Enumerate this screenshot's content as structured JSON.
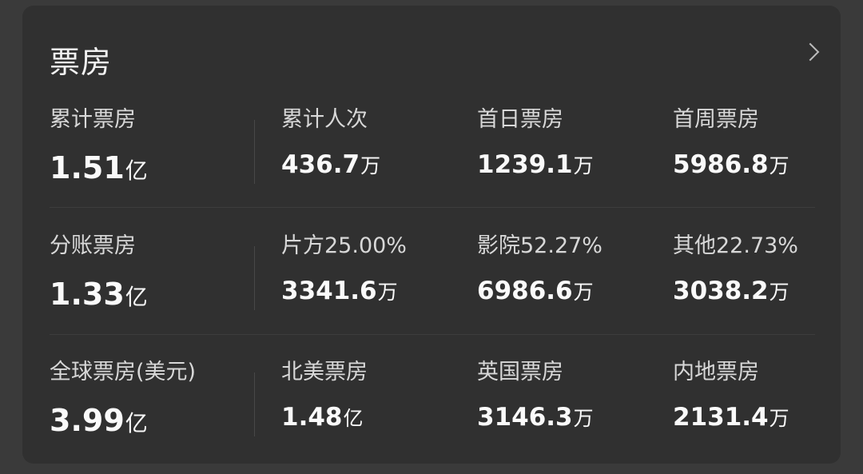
{
  "header": {
    "title": "票房",
    "more_icon": "chevron-right-icon"
  },
  "rows": [
    {
      "primary": {
        "label": "累计票房",
        "value": "1.51",
        "unit": "亿"
      },
      "items": [
        {
          "label": "累计人次",
          "value": "436.7",
          "unit": "万"
        },
        {
          "label": "首日票房",
          "value": "1239.1",
          "unit": "万"
        },
        {
          "label": "首周票房",
          "value": "5986.8",
          "unit": "万"
        }
      ]
    },
    {
      "primary": {
        "label": "分账票房",
        "value": "1.33",
        "unit": "亿"
      },
      "items": [
        {
          "label": "片方25.00%",
          "value": "3341.6",
          "unit": "万"
        },
        {
          "label": "影院52.27%",
          "value": "6986.6",
          "unit": "万"
        },
        {
          "label": "其他22.73%",
          "value": "3038.2",
          "unit": "万"
        }
      ]
    },
    {
      "primary": {
        "label": "全球票房(美元)",
        "value": "3.99",
        "unit": "亿"
      },
      "items": [
        {
          "label": "北美票房",
          "value": "1.48",
          "unit": "亿"
        },
        {
          "label": "英国票房",
          "value": "3146.3",
          "unit": "万"
        },
        {
          "label": "内地票房",
          "value": "2131.4",
          "unit": "万"
        }
      ]
    }
  ]
}
